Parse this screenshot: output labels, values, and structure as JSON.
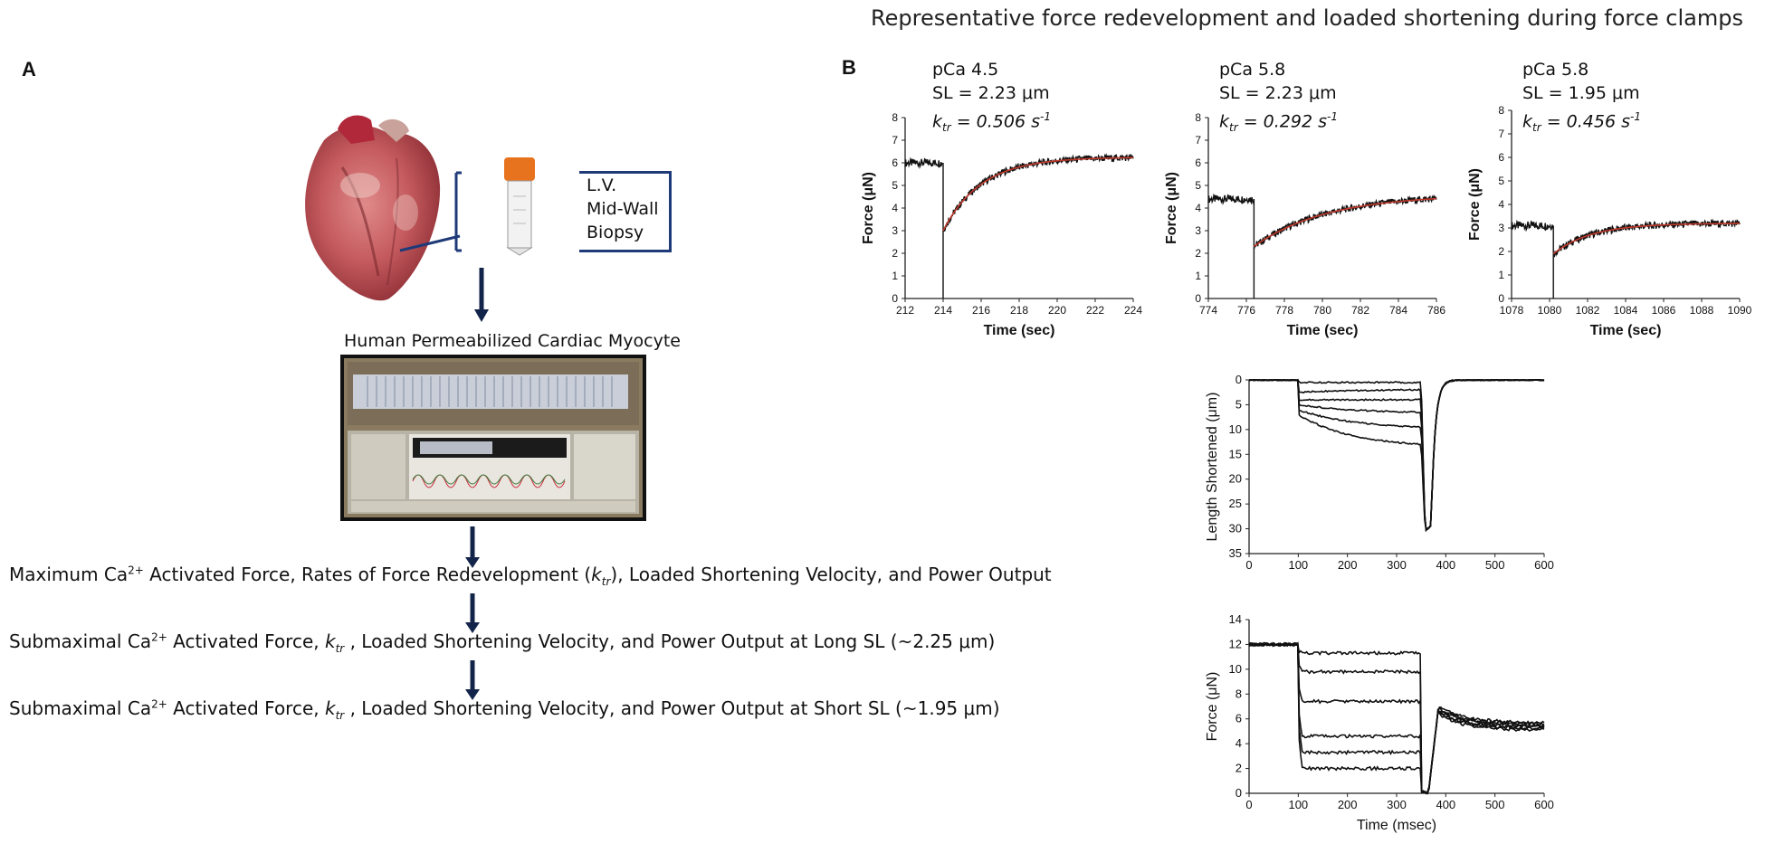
{
  "figure": {
    "title": "Representative force redevelopment and loaded shortening during force clamps",
    "panel_a": "A",
    "panel_b": "B"
  },
  "panel_a": {
    "biopsy_lines": [
      "L.V.",
      "Mid-Wall",
      "Biopsy"
    ],
    "myocyte_label": "Human Permeabilized Cardiac Myocyte",
    "steps": [
      {
        "pre": "Maximum Ca",
        "sup": "2+",
        "mid": " Activated Force, Rates of Force Redevelopment (",
        "k": "k",
        "sub": "tr",
        "post": "), Loaded Shortening Velocity, and Power Output"
      },
      {
        "pre": "Submaximal Ca",
        "sup": "2+",
        "mid": " Activated Force, ",
        "k": "k",
        "sub": "tr",
        "post": " , Loaded Shortening Velocity, and Power Output at Long SL (~2.25 μm)"
      },
      {
        "pre": "Submaximal Ca",
        "sup": "2+",
        "mid": " Activated Force, ",
        "k": "k",
        "sub": "tr",
        "post": " , Loaded Shortening Velocity, and Power Output at Short SL (~1.95 μm)"
      }
    ],
    "colors": {
      "arrow": "#13244a",
      "box": "#1e3a78",
      "cap": "#e8731e"
    }
  },
  "panel_b": {
    "conditions": [
      {
        "pca": "pCa 4.5",
        "sl": "SL = 2.23 μm",
        "k": "k",
        "sub": "tr",
        "val": " = 0.506 s",
        "exp": "-1"
      },
      {
        "pca": "pCa 5.8",
        "sl": "SL = 2.23 μm",
        "k": "k",
        "sub": "tr",
        "val": " = 0.292 s",
        "exp": "-1"
      },
      {
        "pca": "pCa 5.8",
        "sl": "SL = 1.95 μm",
        "k": "k",
        "sub": "tr",
        "val": " = 0.456 s",
        "exp": "-1"
      }
    ]
  },
  "chart_data": [
    {
      "type": "line",
      "ylabel": "Force (μN)",
      "xlabel": "Time (sec)",
      "xlim": [
        212,
        224
      ],
      "ylim": [
        0,
        8
      ],
      "x_ticks": [
        "212",
        "214",
        "216",
        "218",
        "220",
        "222",
        "224"
      ],
      "y_ticks": [
        "0",
        "1",
        "2",
        "3",
        "4",
        "5",
        "6",
        "7",
        "8"
      ],
      "trace": {
        "baseline": 6.0,
        "t_slack": 214.0,
        "y_restart": 3.0,
        "plateau": 6.25,
        "tau": 2.0
      },
      "fit_color": "#c0392b"
    },
    {
      "type": "line",
      "ylabel": "Force (μN)",
      "xlabel": "Time (sec)",
      "xlim": [
        774,
        786
      ],
      "ylim": [
        0,
        8
      ],
      "x_ticks": [
        "774",
        "776",
        "778",
        "780",
        "782",
        "784",
        "786"
      ],
      "y_ticks": [
        "0",
        "1",
        "2",
        "3",
        "4",
        "5",
        "6",
        "7",
        "8"
      ],
      "trace": {
        "baseline": 4.4,
        "t_slack": 776.4,
        "y_restart": 2.3,
        "plateau": 4.6,
        "tau": 3.8
      },
      "fit_color": "#c0392b"
    },
    {
      "type": "line",
      "ylabel": "Force (μN)",
      "xlabel": "Time (sec)",
      "xlim": [
        1078,
        1090
      ],
      "ylim": [
        0,
        8
      ],
      "x_ticks": [
        "1078",
        "1080",
        "1082",
        "1084",
        "1086",
        "1088",
        "1090"
      ],
      "y_ticks": [
        "0",
        "1",
        "2",
        "3",
        "4",
        "5",
        "6",
        "7",
        "8"
      ],
      "trace": {
        "baseline": 3.1,
        "t_slack": 1080.2,
        "y_restart": 1.9,
        "plateau": 3.2,
        "tau": 2.0
      },
      "fit_color": "#c0392b"
    },
    {
      "type": "line",
      "ylabel": "Length Shortened (μm)",
      "xlabel": "",
      "xlim": [
        0,
        600
      ],
      "ylim": [
        0,
        35
      ],
      "y_inverted": true,
      "x_ticks": [
        "0",
        "100",
        "200",
        "300",
        "400",
        "500",
        "600"
      ],
      "y_ticks": [
        "0",
        "5",
        "10",
        "15",
        "20",
        "25",
        "30",
        "35"
      ],
      "series_end_values": [
        0.5,
        2,
        4,
        6.5,
        9.5,
        13
      ],
      "series_jump_values": [
        0.5,
        2.5,
        4,
        5,
        6,
        7
      ],
      "clamp_start_ms": 100,
      "clamp_end_ms": 350,
      "restretch_peak": 30.5
    },
    {
      "type": "line",
      "ylabel": "Force (μN)",
      "xlabel": "Time (msec)",
      "xlim": [
        0,
        600
      ],
      "ylim": [
        0,
        14
      ],
      "x_ticks": [
        "0",
        "100",
        "200",
        "300",
        "400",
        "500",
        "600"
      ],
      "y_ticks": [
        "0",
        "2",
        "4",
        "6",
        "8",
        "10",
        "12",
        "14"
      ],
      "baseline": 12,
      "clamp_levels": [
        11.3,
        9.8,
        7.4,
        4.6,
        3.3,
        2.0
      ],
      "clamp_start_ms": 100,
      "clamp_end_ms": 350,
      "recovery_level": 5.5
    }
  ]
}
